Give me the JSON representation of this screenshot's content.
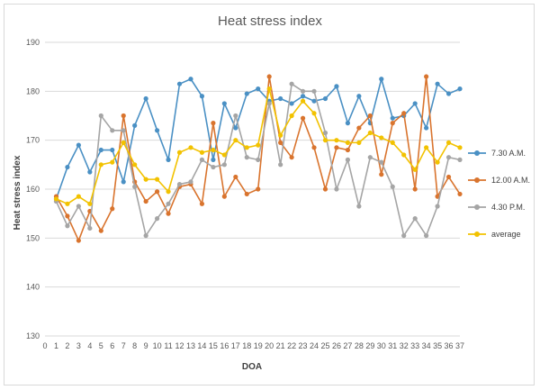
{
  "chart_data": {
    "type": "line",
    "title": "Heat stress index",
    "xlabel": "DOA",
    "ylabel": "Heat stress index",
    "xlim": [
      0,
      37
    ],
    "ylim": [
      130,
      190
    ],
    "y_ticks": [
      130,
      140,
      150,
      160,
      170,
      180,
      190
    ],
    "grid": true,
    "legend_position": "right",
    "x": [
      1,
      2,
      3,
      4,
      5,
      6,
      7,
      8,
      9,
      10,
      11,
      12,
      13,
      14,
      15,
      16,
      17,
      18,
      19,
      20,
      21,
      22,
      23,
      24,
      25,
      26,
      27,
      28,
      29,
      30,
      31,
      32,
      33,
      34,
      35,
      36,
      37
    ],
    "series": [
      {
        "name": "7.30 A.M.",
        "color": "#4a90c4",
        "values": [
          158,
          164.5,
          169,
          163.5,
          168,
          168,
          161.5,
          173,
          178.5,
          172,
          166,
          181.5,
          182.5,
          179,
          166,
          177.5,
          172.5,
          179.5,
          180.5,
          178,
          178.5,
          177.5,
          179,
          178,
          178.5,
          181,
          173.5,
          179,
          173.5,
          182.5,
          174.5,
          175,
          177.5,
          172.5,
          181.5,
          179.5,
          180.5
        ]
      },
      {
        "name": "12.00 A.M.",
        "color": "#d9742e",
        "values": [
          158.5,
          154.5,
          149.5,
          155.5,
          151.5,
          156,
          175,
          161.5,
          157.5,
          159.5,
          155,
          160.5,
          161,
          157,
          173.5,
          158.5,
          162.5,
          159,
          160,
          183,
          169.5,
          166.5,
          174.5,
          168.5,
          160,
          168.5,
          168,
          172.5,
          175,
          163,
          173.5,
          175.5,
          160,
          183,
          158.5,
          162.5,
          159
        ]
      },
      {
        "name": "4.30 P.M.",
        "color": "#a5a5a5",
        "values": [
          157.5,
          152.5,
          156.5,
          152,
          175,
          172,
          172,
          160.5,
          150.5,
          154,
          157,
          161,
          161.5,
          166,
          164.5,
          165,
          175,
          166.5,
          166,
          177.5,
          165,
          181.5,
          180,
          180,
          171.5,
          160,
          166,
          156.5,
          166.5,
          165.5,
          160.5,
          150.5,
          154,
          150.5,
          156.5,
          166.5,
          166
        ]
      },
      {
        "name": "average",
        "color": "#f2c200",
        "values": [
          158,
          157,
          158.5,
          157,
          165,
          165.5,
          169.5,
          165,
          162,
          162,
          159.5,
          167.5,
          168.5,
          167.5,
          168,
          167,
          170,
          168.5,
          169,
          180.5,
          171,
          175,
          178,
          175.5,
          170,
          170,
          169.5,
          169.5,
          171.5,
          170.5,
          169.5,
          167,
          164,
          168.5,
          165.5,
          169.5,
          168.5
        ]
      }
    ]
  }
}
